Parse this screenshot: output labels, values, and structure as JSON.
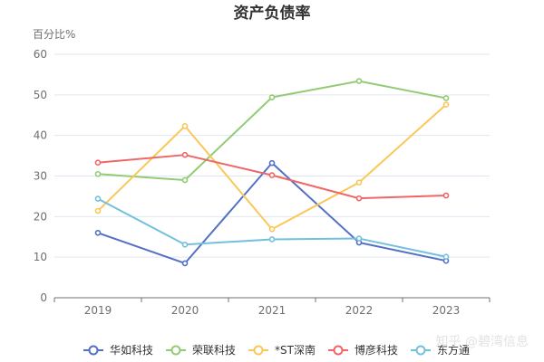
{
  "chart_data": {
    "type": "line",
    "title": "资产负债率",
    "ylabel": "百分比%",
    "xlabel": "",
    "categories": [
      "2019",
      "2020",
      "2021",
      "2022",
      "2023"
    ],
    "ylim": [
      0,
      60
    ],
    "yticks": [
      0,
      10,
      20,
      30,
      40,
      50,
      60
    ],
    "grid": true,
    "legend_position": "bottom",
    "series": [
      {
        "name": "华如科技",
        "color": "#5470c6",
        "values": [
          16.0,
          8.5,
          33.2,
          13.6,
          9.1
        ]
      },
      {
        "name": "荣联科技",
        "color": "#91cc75",
        "values": [
          30.5,
          29.0,
          49.4,
          53.4,
          49.2
        ]
      },
      {
        "name": "*ST深南",
        "color": "#fac858",
        "values": [
          21.4,
          42.3,
          16.9,
          28.4,
          47.6
        ]
      },
      {
        "name": "博彦科技",
        "color": "#ee6666",
        "values": [
          33.3,
          35.2,
          30.2,
          24.5,
          25.2
        ]
      },
      {
        "name": "东方通",
        "color": "#73c0de",
        "values": [
          24.4,
          13.1,
          14.4,
          14.6,
          10.1
        ]
      }
    ]
  },
  "watermark": "知乎 @碧湾信息"
}
